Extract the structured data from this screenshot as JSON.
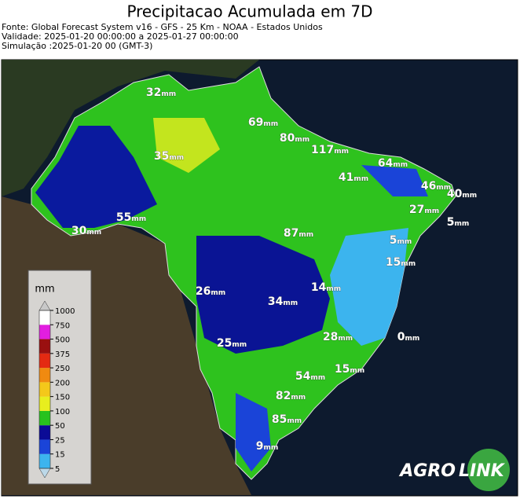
{
  "header": {
    "title": "Precipitacao Acumulada em 7D",
    "lines": [
      "Fonte: Global Forecast System v16 - GFS - 25 Km - NOAA - Estados Unidos",
      "Validade: 2025-01-20 00:00:00 a 2025-01-27 00:00:00",
      "Simulação :2025-01-20 00 (GMT-3)"
    ]
  },
  "map": {
    "label_unit": "mm",
    "labels": [
      32,
      69,
      80,
      117,
      35,
      64,
      41,
      46,
      40,
      27,
      55,
      5,
      30,
      87,
      5,
      15,
      26,
      14,
      34,
      0,
      28,
      25,
      15,
      54,
      82,
      85,
      9
    ]
  },
  "colorbar": {
    "title": "mm",
    "ticks": [
      5,
      15,
      25,
      50,
      100,
      150,
      200,
      250,
      375,
      500,
      750,
      1000
    ],
    "colors": [
      "#3cb4ee",
      "#1a44d8",
      "#0b0b96",
      "#28c21e",
      "#e8ee1e",
      "#f4c81a",
      "#f08a10",
      "#e42a12",
      "#9a1010",
      "#e21ee0",
      "#ffffff"
    ],
    "under_color": "#bcd8e8",
    "over_color": "#c8c8c8"
  },
  "logo": {
    "left": "AGRO",
    "right": "LINK"
  }
}
